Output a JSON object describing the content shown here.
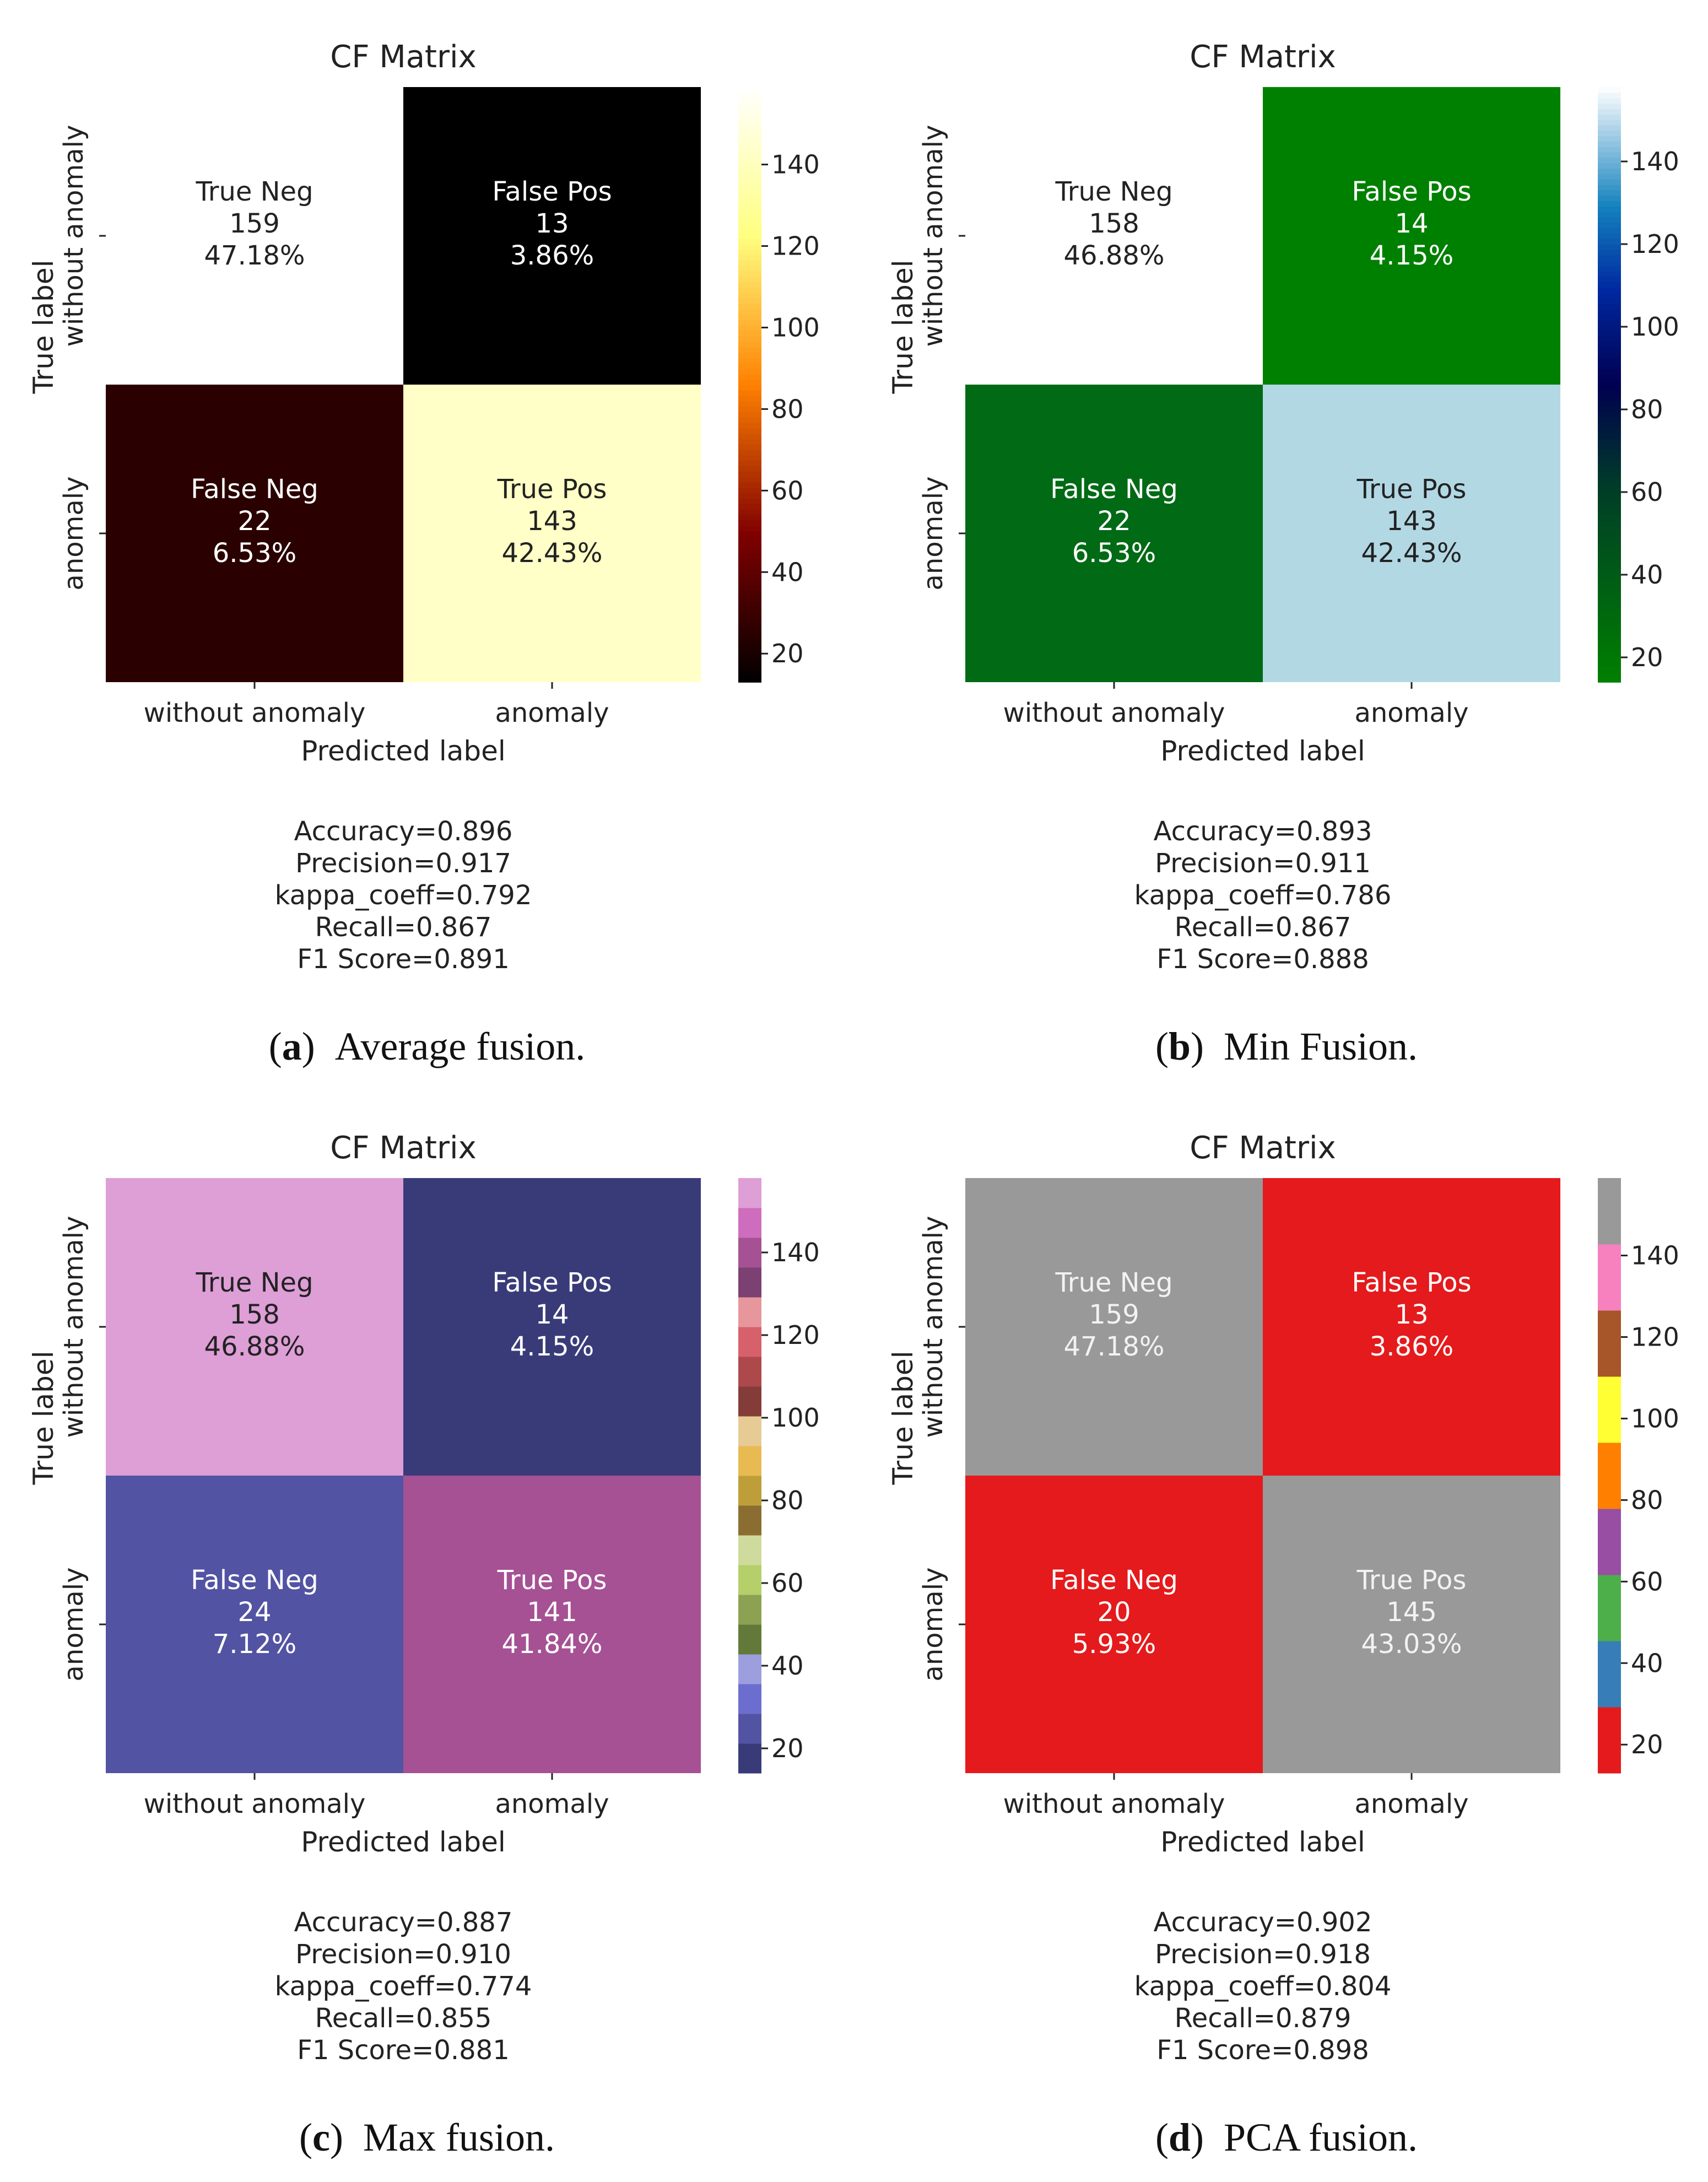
{
  "chart_data": [
    {
      "type": "heatmap",
      "title": "CF Matrix",
      "xlabel": "Predicted label",
      "ylabel": "True label",
      "x_categories": [
        "without anomaly",
        "anomaly"
      ],
      "y_categories": [
        "without anomaly",
        "anomaly"
      ],
      "cells": [
        {
          "name": "True Neg",
          "count": "159",
          "percent": "47.18%",
          "value": 159
        },
        {
          "name": "False Pos",
          "count": "13",
          "percent": "3.86%",
          "value": 13
        },
        {
          "name": "False Neg",
          "count": "22",
          "percent": "6.53%",
          "value": 22
        },
        {
          "name": "True Pos",
          "count": "143",
          "percent": "42.43%",
          "value": 143
        }
      ],
      "colorbar": {
        "ticks": [
          "20",
          "40",
          "60",
          "80",
          "100",
          "120",
          "140"
        ],
        "vmin": 13,
        "vmax": 159,
        "colormap": "afmhot"
      },
      "cell_colors": [
        "#ffffff",
        "#000000",
        "#2a0000",
        "#ffffc7"
      ],
      "text_colors": [
        "#222222",
        "#ffffff",
        "#ffffff",
        "#222222"
      ],
      "metrics": [
        "Accuracy=0.896",
        "Precision=0.917",
        "kappa_coeff=0.792",
        "Recall=0.867",
        "F1 Score=0.891"
      ],
      "caption_label": "(a)",
      "caption_text": "Average fusion."
    },
    {
      "type": "heatmap",
      "title": "CF Matrix",
      "xlabel": "Predicted label",
      "ylabel": "True label",
      "x_categories": [
        "without anomaly",
        "anomaly"
      ],
      "y_categories": [
        "without anomaly",
        "anomaly"
      ],
      "cells": [
        {
          "name": "True Neg",
          "count": "158",
          "percent": "46.88%",
          "value": 158
        },
        {
          "name": "False Pos",
          "count": "14",
          "percent": "4.15%",
          "value": 14
        },
        {
          "name": "False Neg",
          "count": "22",
          "percent": "6.53%",
          "value": 22
        },
        {
          "name": "True Pos",
          "count": "143",
          "percent": "42.43%",
          "value": 143
        }
      ],
      "colorbar": {
        "ticks": [
          "20",
          "40",
          "60",
          "80",
          "100",
          "120",
          "140"
        ],
        "vmin": 14,
        "vmax": 158,
        "colormap": "ocean"
      },
      "cell_colors": [
        "#ffffff",
        "#008000",
        "#006a15",
        "#b2d8e4"
      ],
      "text_colors": [
        "#222222",
        "#ffffff",
        "#ffffff",
        "#222222"
      ],
      "metrics": [
        "Accuracy=0.893",
        "Precision=0.911",
        "kappa_coeff=0.786",
        "Recall=0.867",
        "F1 Score=0.888"
      ],
      "caption_label": "(b)",
      "caption_text": "Min Fusion."
    },
    {
      "type": "heatmap",
      "title": "CF Matrix",
      "xlabel": "Predicted label",
      "ylabel": "True label",
      "x_categories": [
        "without anomaly",
        "anomaly"
      ],
      "y_categories": [
        "without anomaly",
        "anomaly"
      ],
      "cells": [
        {
          "name": "True Neg",
          "count": "158",
          "percent": "46.88%",
          "value": 158
        },
        {
          "name": "False Pos",
          "count": "14",
          "percent": "4.15%",
          "value": 14
        },
        {
          "name": "False Neg",
          "count": "24",
          "percent": "7.12%",
          "value": 24
        },
        {
          "name": "True Pos",
          "count": "141",
          "percent": "41.84%",
          "value": 141
        }
      ],
      "colorbar": {
        "ticks": [
          "20",
          "40",
          "60",
          "80",
          "100",
          "120",
          "140"
        ],
        "vmin": 14,
        "vmax": 158,
        "colormap": "tab20b"
      },
      "cell_colors": [
        "#de9ed6",
        "#393b79",
        "#5253a3",
        "#a55194"
      ],
      "text_colors": [
        "#222222",
        "#ffffff",
        "#ffffff",
        "#ffffff"
      ],
      "metrics": [
        "Accuracy=0.887",
        "Precision=0.910",
        "kappa_coeff=0.774",
        "Recall=0.855",
        "F1 Score=0.881"
      ],
      "caption_label": "(c)",
      "caption_text": "Max fusion."
    },
    {
      "type": "heatmap",
      "title": "CF Matrix",
      "xlabel": "Predicted label",
      "ylabel": "True label",
      "x_categories": [
        "without anomaly",
        "anomaly"
      ],
      "y_categories": [
        "without anomaly",
        "anomaly"
      ],
      "cells": [
        {
          "name": "True Neg",
          "count": "159",
          "percent": "47.18%",
          "value": 159
        },
        {
          "name": "False Pos",
          "count": "13",
          "percent": "3.86%",
          "value": 13
        },
        {
          "name": "False Neg",
          "count": "20",
          "percent": "5.93%",
          "value": 20
        },
        {
          "name": "True Pos",
          "count": "145",
          "percent": "43.03%",
          "value": 145
        }
      ],
      "colorbar": {
        "ticks": [
          "20",
          "40",
          "60",
          "80",
          "100",
          "120",
          "140"
        ],
        "vmin": 13,
        "vmax": 159,
        "colormap": "Set1"
      },
      "cell_colors": [
        "#999999",
        "#e41a1c",
        "#e41a1c",
        "#999999"
      ],
      "text_colors": [
        "#f2f2f2",
        "#ffffff",
        "#ffffff",
        "#f2f2f2"
      ],
      "metrics": [
        "Accuracy=0.902",
        "Precision=0.918",
        "kappa_coeff=0.804",
        "Recall=0.879",
        "F1 Score=0.898"
      ],
      "caption_label": "(d)",
      "caption_text": "PCA fusion."
    }
  ]
}
